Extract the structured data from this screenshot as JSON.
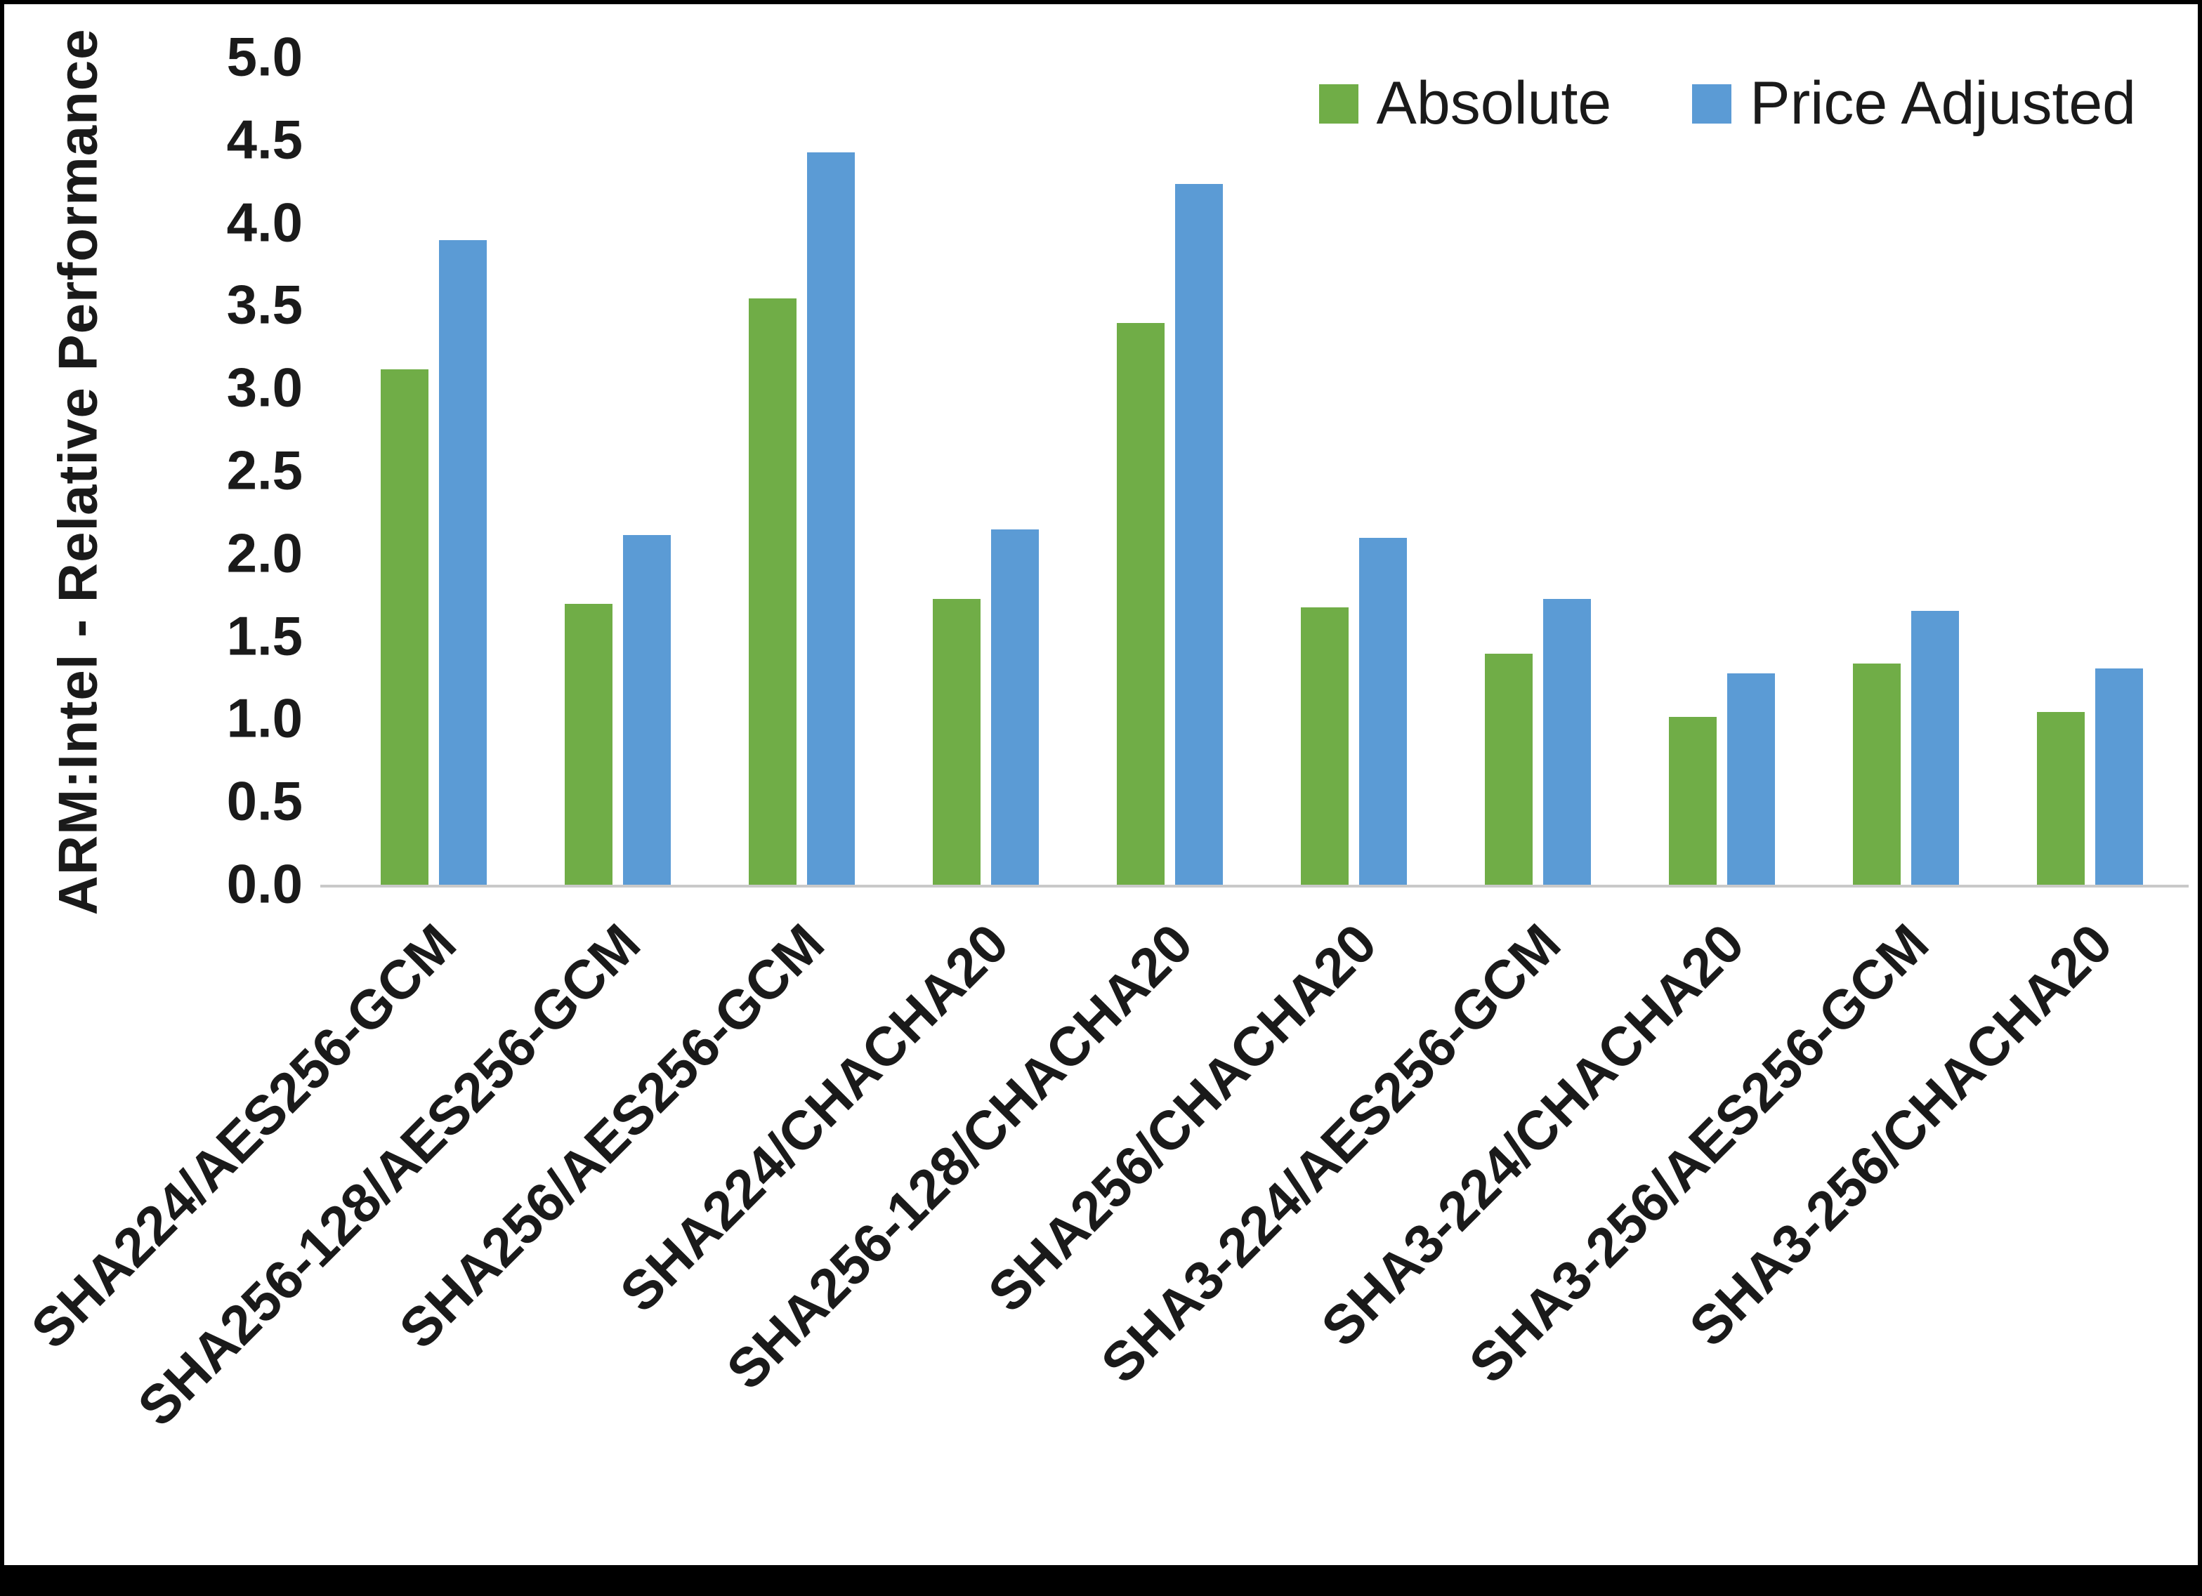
{
  "frame": {
    "background": "#ffffff",
    "border_color": "#000000",
    "axis_line_color": "#c9c9c9",
    "text_color": "#1a1a1a"
  },
  "chart_data": {
    "type": "bar",
    "title": "",
    "xlabel": "",
    "ylabel": "ARM:Intel - Relative Performance",
    "ylim": [
      0,
      5
    ],
    "ytick_step": 0.5,
    "yticks": [
      "5.0",
      "4.5",
      "4.0",
      "3.5",
      "3.0",
      "2.5",
      "2.0",
      "1.5",
      "1.0",
      "0.5",
      "0.0"
    ],
    "grid": false,
    "legend_position": "top-right",
    "categories": [
      "SHA224/AES256-GCM",
      "SHA256-128/AES256-GCM",
      "SHA256/AES256-GCM",
      "SHA224/CHACHA20",
      "SHA256-128/CHACHA20",
      "SHA256/CHACHA20",
      "SHA3-224/AES256-GCM",
      "SHA3-224/CHACHA20",
      "SHA3-256/AES256-GCM",
      "SHA3-256/CHACHA20"
    ],
    "series": [
      {
        "name": "Absolute",
        "color": "#70AD47",
        "values": [
          3.12,
          1.7,
          3.55,
          1.73,
          3.4,
          1.68,
          1.4,
          1.02,
          1.34,
          1.05
        ]
      },
      {
        "name": "Price Adjusted",
        "color": "#5B9BD5",
        "values": [
          3.9,
          2.12,
          4.43,
          2.15,
          4.24,
          2.1,
          1.73,
          1.28,
          1.66,
          1.31
        ]
      }
    ]
  }
}
